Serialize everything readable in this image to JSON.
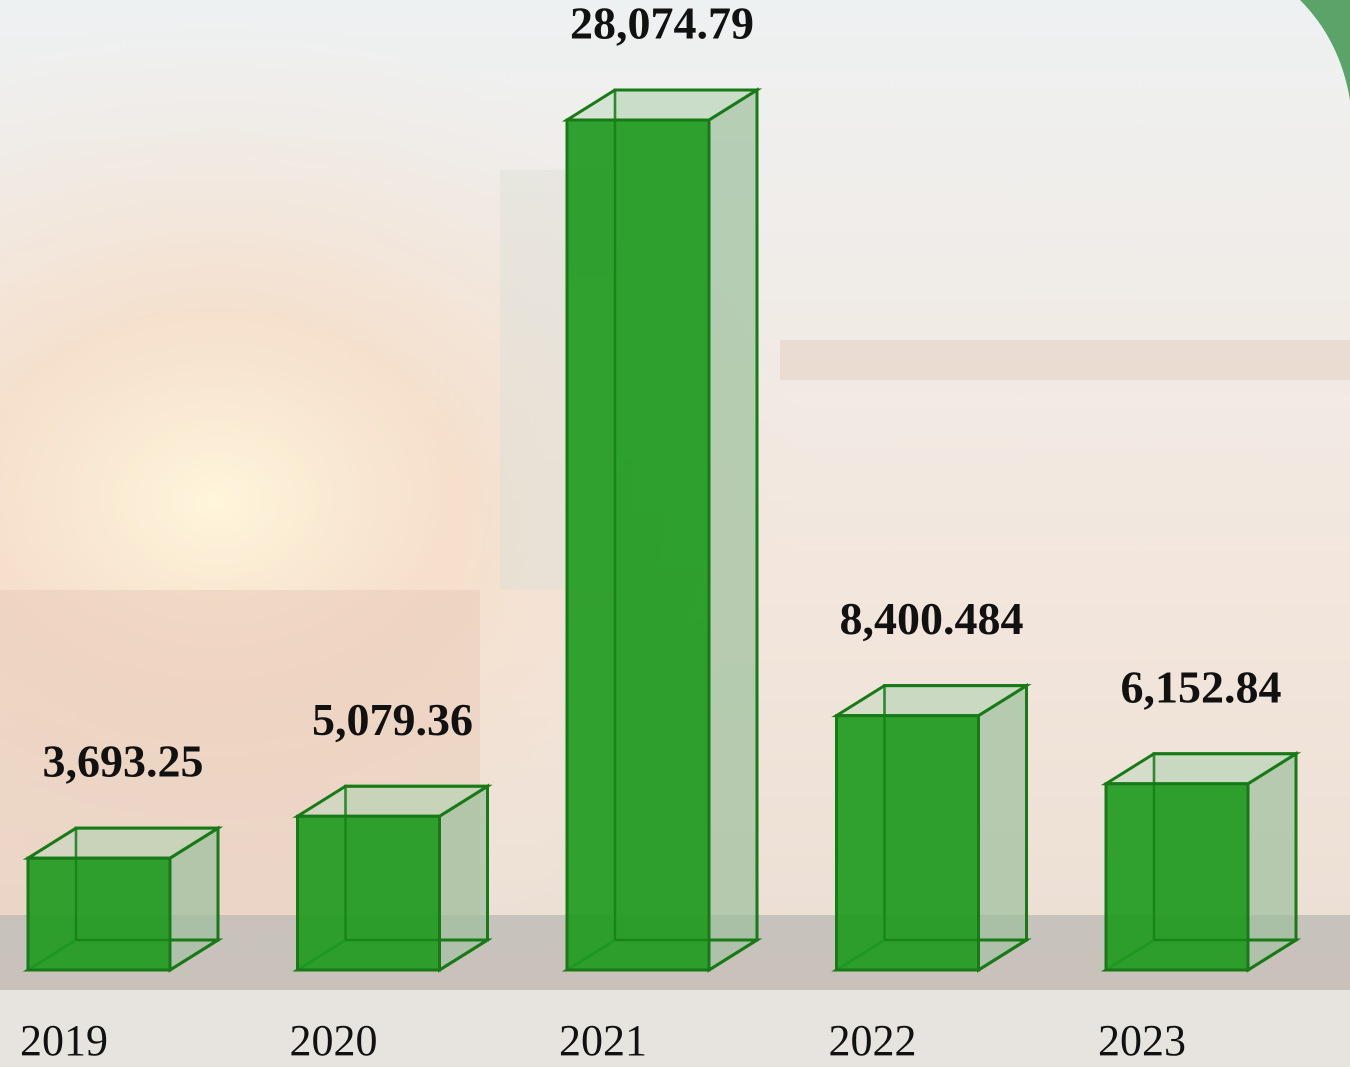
{
  "chart_data": {
    "type": "bar",
    "categories": [
      "2019",
      "2020",
      "2021",
      "2022",
      "2023"
    ],
    "values": [
      3693.25,
      5079.36,
      28074.79,
      8400.484,
      6152.84
    ],
    "value_labels": [
      "3,693.25",
      "5,079.36",
      "28,074.79",
      "8,400.484",
      "6,152.84"
    ],
    "color": "#1f9a1f"
  }
}
